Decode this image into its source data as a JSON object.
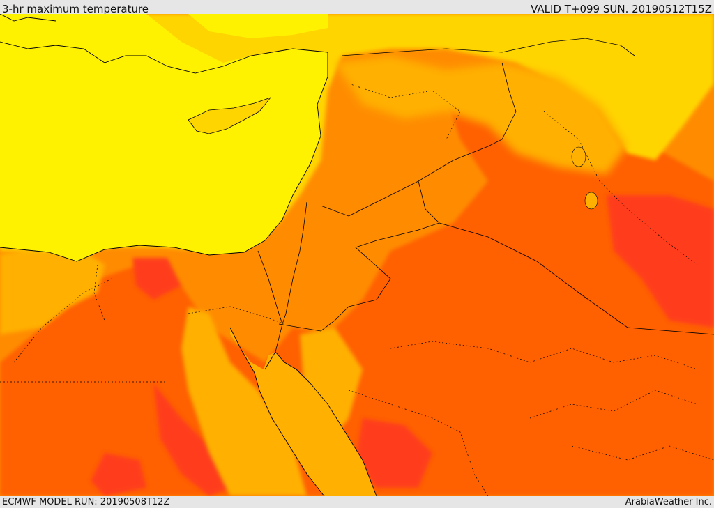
{
  "header": {
    "title": "3-hr maximum temperature",
    "valid_time": "VALID T+099 SUN. 20190512T15Z"
  },
  "footer": {
    "model_run": "ECMWF MODEL RUN: 20190508T12Z",
    "credit": "ArabiaWeather Inc."
  },
  "map": {
    "variable": "3-hr maximum temperature",
    "color_ramp": [
      "#fff200",
      "#ffd500",
      "#ffb000",
      "#ff8c00",
      "#ff6000",
      "#ff3c1e"
    ],
    "colors": {
      "sea": "#fff200",
      "coastline": "#000000",
      "border": "#000000"
    }
  }
}
